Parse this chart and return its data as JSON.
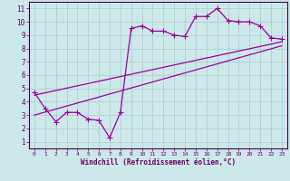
{
  "line1_x": [
    0,
    1,
    2,
    3,
    4,
    5,
    6,
    7,
    8,
    9,
    10,
    11,
    12,
    13,
    14,
    15,
    16,
    17,
    18,
    19,
    20,
    21,
    22,
    23
  ],
  "line1_y": [
    4.7,
    3.5,
    2.5,
    3.2,
    3.2,
    2.7,
    2.6,
    1.3,
    3.2,
    9.5,
    9.7,
    9.3,
    9.3,
    9.0,
    8.9,
    10.4,
    10.4,
    11.0,
    10.1,
    10.0,
    10.0,
    9.7,
    8.8,
    8.7
  ],
  "line2_x": [
    0,
    23
  ],
  "line2_y": [
    4.5,
    8.5
  ],
  "line3_x": [
    0,
    23
  ],
  "line3_y": [
    3.0,
    8.2
  ],
  "line_color": "#990099",
  "bg_color": "#cce8e8",
  "grid_color": "#aacccc",
  "axis_color": "#440044",
  "text_color": "#660066",
  "xlim": [
    -0.5,
    23.5
  ],
  "ylim": [
    0.5,
    11.5
  ],
  "xlabel": "Windchill (Refroidissement éolien,°C)",
  "xticks": [
    0,
    1,
    2,
    3,
    4,
    5,
    6,
    7,
    8,
    9,
    10,
    11,
    12,
    13,
    14,
    15,
    16,
    17,
    18,
    19,
    20,
    21,
    22,
    23
  ],
  "yticks": [
    1,
    2,
    3,
    4,
    5,
    6,
    7,
    8,
    9,
    10,
    11
  ],
  "marker": "+",
  "markersize": 4,
  "linewidth": 0.9
}
